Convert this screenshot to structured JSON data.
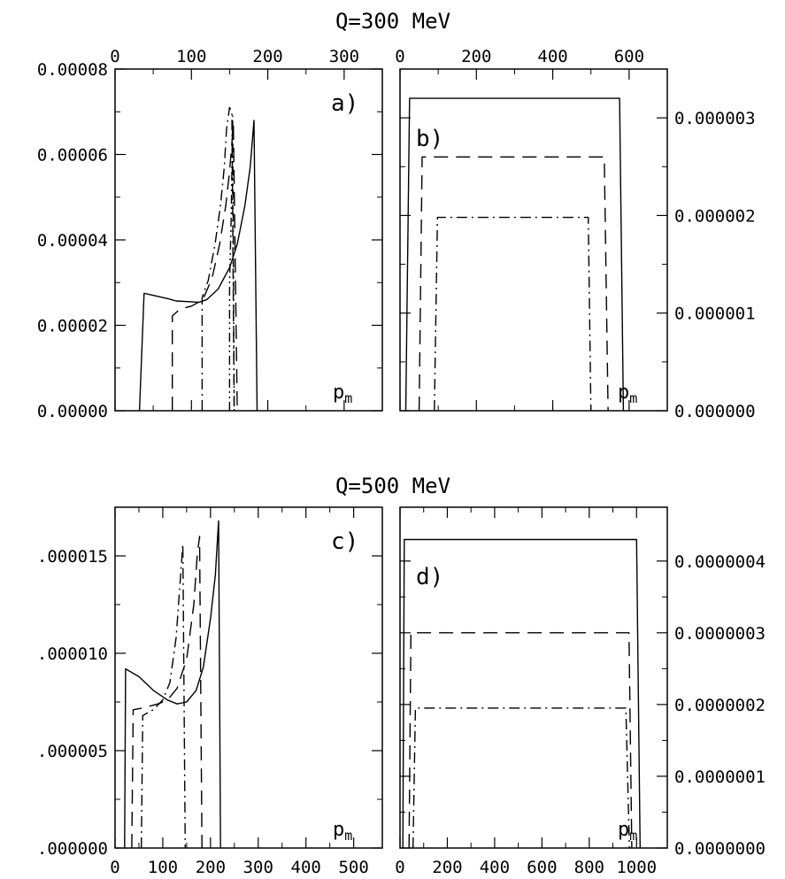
{
  "figure_titles": [
    "Q=300 MeV",
    "Q=500 MeV"
  ],
  "chart_data": [
    {
      "type": "line",
      "panel_label": "a)",
      "xlabel": "p",
      "xlabel_sub": "m",
      "xlim": [
        0,
        350
      ],
      "ylim": [
        0,
        8e-05
      ],
      "x_ticks": [
        0,
        100,
        200,
        300
      ],
      "x_tick_labels": [
        "0",
        "100",
        "200",
        "300"
      ],
      "x_tick_labels_position": "top",
      "y_ticks": [
        0,
        2e-05,
        4e-05,
        6e-05,
        8e-05
      ],
      "y_tick_labels": [
        "0.00000",
        "0.00002",
        "0.00004",
        "0.00006",
        "0.00008"
      ],
      "y_tick_labels_position": "left",
      "series": [
        {
          "style": "solid",
          "x": [
            32,
            38,
            70,
            80,
            110,
            120,
            135,
            150,
            160,
            170,
            177,
            182,
            186
          ],
          "y": [
            0,
            2.75e-05,
            2.62e-05,
            2.57e-05,
            2.54e-05,
            2.6e-05,
            2.85e-05,
            3.35e-05,
            3.9e-05,
            4.8e-05,
            5.7e-05,
            6.8e-05,
            0
          ]
        },
        {
          "style": "dashed",
          "x": [
            75,
            75,
            85,
            100,
            115,
            127,
            137,
            145,
            150,
            155,
            160
          ],
          "y": [
            0,
            2.22e-05,
            2.38e-05,
            2.45e-05,
            2.6e-05,
            3.1e-05,
            3.9e-05,
            4.8e-05,
            5.6e-05,
            6.7e-05,
            0
          ]
        },
        {
          "style": "dashdot",
          "x": [
            114,
            114,
            122,
            131,
            138,
            143,
            146,
            150,
            153,
            156
          ],
          "y": [
            0,
            2.65e-05,
            3.05e-05,
            3.9e-05,
            4.8e-05,
            5.7e-05,
            6.6e-05,
            7.1e-05,
            7e-05,
            0
          ]
        },
        {
          "style": "dashdotdot",
          "x": [
            150,
            150,
            152,
            154,
            156
          ],
          "y": [
            0,
            3e-05,
            4.5e-05,
            6.9e-05,
            0
          ]
        }
      ]
    },
    {
      "type": "line",
      "panel_label": "b)",
      "xlabel": "p",
      "xlabel_sub": "m",
      "xlim": [
        0,
        700
      ],
      "ylim": [
        0,
        3.5e-06
      ],
      "x_ticks": [
        0,
        200,
        400,
        600
      ],
      "x_tick_labels": [
        "0",
        "200",
        "400",
        "600"
      ],
      "x_tick_labels_position": "top",
      "y_ticks": [
        0,
        1e-06,
        2e-06,
        3e-06
      ],
      "y_tick_labels": [
        "0.000000",
        "0.000001",
        "0.000002",
        "0.000003"
      ],
      "y_tick_labels_position": "right",
      "series": [
        {
          "style": "solid",
          "x": [
            15,
            25,
            575,
            585
          ],
          "y": [
            0,
            3.2e-06,
            3.2e-06,
            0
          ]
        },
        {
          "style": "dashed",
          "x": [
            50,
            58,
            535,
            545
          ],
          "y": [
            0,
            2.6e-06,
            2.6e-06,
            0
          ]
        },
        {
          "style": "dashdot",
          "x": [
            90,
            98,
            493,
            500
          ],
          "y": [
            0,
            1.98e-06,
            1.98e-06,
            0
          ]
        }
      ]
    },
    {
      "type": "line",
      "panel_label": "c)",
      "xlabel": "p",
      "xlabel_sub": "m",
      "xlim": [
        0,
        560
      ],
      "ylim": [
        0,
        1.75e-05
      ],
      "x_ticks": [
        0,
        100,
        200,
        300,
        400,
        500
      ],
      "x_tick_labels": [
        "0",
        "100",
        "200",
        "300",
        "400",
        "500"
      ],
      "x_tick_labels_position": "bottom",
      "y_ticks": [
        0,
        5e-06,
        1e-05,
        1.5e-05
      ],
      "y_tick_labels": [
        ".000000",
        ".000005",
        ".000010",
        ".000015"
      ],
      "y_tick_labels_position": "left",
      "series": [
        {
          "style": "solid",
          "x": [
            20,
            22,
            50,
            80,
            110,
            130,
            150,
            170,
            185,
            200,
            210,
            217,
            221
          ],
          "y": [
            0,
            9.2e-06,
            8.8e-06,
            8.1e-06,
            7.6e-06,
            7.4e-06,
            7.5e-06,
            8.1e-06,
            9.3e-06,
            1.18e-05,
            1.4e-05,
            1.68e-05,
            0
          ]
        },
        {
          "style": "dashed",
          "x": [
            35,
            38,
            60,
            90,
            110,
            130,
            150,
            165,
            172,
            177,
            182
          ],
          "y": [
            0,
            7.1e-06,
            7.2e-06,
            7.4e-06,
            7.6e-06,
            8.2e-06,
            9.7e-06,
            1.25e-05,
            1.5e-05,
            1.6e-05,
            0
          ]
        },
        {
          "style": "dashdot",
          "x": [
            55,
            58,
            80,
            100,
            115,
            128,
            136,
            142,
            147
          ],
          "y": [
            0,
            6.8e-06,
            7.1e-06,
            7.6e-06,
            8.5e-06,
            1.08e-05,
            1.35e-05,
            1.56e-05,
            0
          ]
        }
      ]
    },
    {
      "type": "line",
      "panel_label": "d)",
      "xlabel": "p",
      "xlabel_sub": "m",
      "xlim": [
        0,
        1130
      ],
      "ylim": [
        0,
        4.75e-07
      ],
      "x_ticks": [
        0,
        200,
        400,
        600,
        800,
        1000
      ],
      "x_tick_labels": [
        "0",
        "200",
        "400",
        "600",
        "800",
        "1000"
      ],
      "x_tick_labels_position": "bottom",
      "y_ticks": [
        0,
        1e-07,
        2e-07,
        3e-07,
        4e-07
      ],
      "y_tick_labels": [
        "0.0000000",
        "0.0000001",
        "0.0000002",
        "0.0000003",
        "0.0000004"
      ],
      "y_tick_labels_position": "right",
      "series": [
        {
          "style": "solid",
          "x": [
            12,
            18,
            1000,
            1015
          ],
          "y": [
            0,
            4.3e-07,
            4.3e-07,
            0
          ]
        },
        {
          "style": "dashed",
          "x": [
            38,
            46,
            968,
            980
          ],
          "y": [
            0,
            3e-07,
            3e-07,
            0
          ]
        },
        {
          "style": "dashdot",
          "x": [
            55,
            65,
            955,
            970
          ],
          "y": [
            0,
            1.95e-07,
            1.95e-07,
            0
          ]
        }
      ]
    }
  ]
}
